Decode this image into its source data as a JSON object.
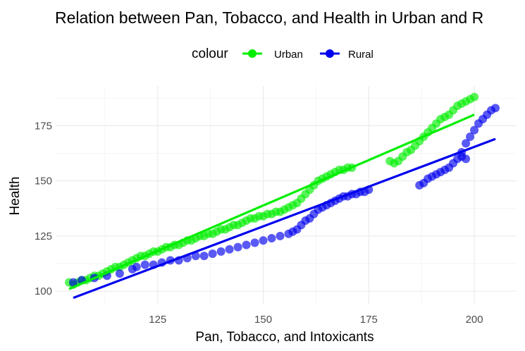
{
  "chart_data": {
    "type": "scatter",
    "title": "Relation between Pan, Tobacco, and Health in Urban and R",
    "xlabel": "Pan, Tobacco, and Intoxicants",
    "ylabel": "Health",
    "xlim": [
      101,
      210
    ],
    "ylim": [
      94,
      193
    ],
    "x_ticks": [
      125,
      150,
      175,
      200
    ],
    "y_ticks": [
      100,
      125,
      150,
      175
    ],
    "grid": true,
    "legend": {
      "title": "colour",
      "position": "top"
    },
    "series": [
      {
        "name": "Urban",
        "color": "#00ee00",
        "points": [
          [
            104,
            104
          ],
          [
            105,
            103
          ],
          [
            106,
            104
          ],
          [
            107,
            105
          ],
          [
            108,
            105
          ],
          [
            109,
            106
          ],
          [
            110,
            107
          ],
          [
            111,
            107
          ],
          [
            112,
            108
          ],
          [
            113,
            109
          ],
          [
            114,
            110
          ],
          [
            115,
            111
          ],
          [
            116,
            111
          ],
          [
            117,
            112
          ],
          [
            118,
            113
          ],
          [
            119,
            114
          ],
          [
            120,
            115
          ],
          [
            121,
            116
          ],
          [
            122,
            116
          ],
          [
            123,
            117
          ],
          [
            124,
            118
          ],
          [
            125,
            118
          ],
          [
            126,
            119
          ],
          [
            127,
            120
          ],
          [
            128,
            120
          ],
          [
            129,
            121
          ],
          [
            130,
            121
          ],
          [
            131,
            122
          ],
          [
            132,
            123
          ],
          [
            133,
            123
          ],
          [
            134,
            124
          ],
          [
            135,
            125
          ],
          [
            136,
            125
          ],
          [
            137,
            126
          ],
          [
            138,
            126
          ],
          [
            139,
            127
          ],
          [
            140,
            128
          ],
          [
            141,
            128
          ],
          [
            142,
            129
          ],
          [
            143,
            130
          ],
          [
            144,
            130
          ],
          [
            145,
            131
          ],
          [
            146,
            132
          ],
          [
            147,
            133
          ],
          [
            148,
            133
          ],
          [
            149,
            134
          ],
          [
            150,
            134
          ],
          [
            151,
            135
          ],
          [
            152,
            135
          ],
          [
            153,
            136
          ],
          [
            154,
            136
          ],
          [
            155,
            137
          ],
          [
            156,
            138
          ],
          [
            157,
            139
          ],
          [
            158,
            140
          ],
          [
            159,
            142
          ],
          [
            160,
            144
          ],
          [
            161,
            146
          ],
          [
            162,
            148
          ],
          [
            163,
            150
          ],
          [
            164,
            151
          ],
          [
            165,
            152
          ],
          [
            166,
            153
          ],
          [
            167,
            154
          ],
          [
            168,
            155
          ],
          [
            169,
            155
          ],
          [
            170,
            156
          ],
          [
            171,
            156
          ],
          [
            180,
            159
          ],
          [
            181,
            158
          ],
          [
            182,
            159
          ],
          [
            183,
            161
          ],
          [
            184,
            163
          ],
          [
            185,
            164
          ],
          [
            186,
            166
          ],
          [
            187,
            168
          ],
          [
            188,
            170
          ],
          [
            189,
            172
          ],
          [
            190,
            174
          ],
          [
            191,
            176
          ],
          [
            192,
            178
          ],
          [
            193,
            179
          ],
          [
            194,
            180
          ],
          [
            195,
            182
          ],
          [
            196,
            184
          ],
          [
            197,
            185
          ],
          [
            198,
            186
          ],
          [
            199,
            187
          ],
          [
            200,
            188
          ]
        ],
        "trend": [
          [
            104,
            101
          ],
          [
            200,
            180
          ]
        ]
      },
      {
        "name": "Rural",
        "color": "#0000ee",
        "points": [
          [
            105,
            104
          ],
          [
            107,
            105
          ],
          [
            110,
            106
          ],
          [
            113,
            107
          ],
          [
            116,
            108
          ],
          [
            119,
            110
          ],
          [
            120,
            111
          ],
          [
            122,
            112
          ],
          [
            124,
            112
          ],
          [
            126,
            113
          ],
          [
            128,
            114
          ],
          [
            130,
            114
          ],
          [
            132,
            115
          ],
          [
            134,
            116
          ],
          [
            136,
            116
          ],
          [
            138,
            117
          ],
          [
            140,
            118
          ],
          [
            142,
            119
          ],
          [
            144,
            120
          ],
          [
            146,
            121
          ],
          [
            148,
            122
          ],
          [
            150,
            123
          ],
          [
            152,
            124
          ],
          [
            154,
            125
          ],
          [
            156,
            126
          ],
          [
            157,
            127
          ],
          [
            158,
            128
          ],
          [
            159,
            130
          ],
          [
            160,
            132
          ],
          [
            161,
            133
          ],
          [
            162,
            135
          ],
          [
            163,
            137
          ],
          [
            164,
            138
          ],
          [
            165,
            139
          ],
          [
            166,
            140
          ],
          [
            167,
            141
          ],
          [
            168,
            142
          ],
          [
            169,
            143
          ],
          [
            170,
            143
          ],
          [
            171,
            144
          ],
          [
            172,
            144
          ],
          [
            173,
            145
          ],
          [
            174,
            145
          ],
          [
            175,
            146
          ],
          [
            187,
            148
          ],
          [
            188,
            149
          ],
          [
            189,
            151
          ],
          [
            190,
            152
          ],
          [
            191,
            153
          ],
          [
            192,
            154
          ],
          [
            193,
            155
          ],
          [
            194,
            156
          ],
          [
            195,
            158
          ],
          [
            196,
            160
          ],
          [
            197,
            163
          ],
          [
            198,
            167
          ],
          [
            199,
            170
          ],
          [
            200,
            173
          ],
          [
            201,
            176
          ],
          [
            202,
            178
          ],
          [
            203,
            180
          ],
          [
            204,
            182
          ],
          [
            205,
            183
          ],
          [
            197,
            161
          ],
          [
            198,
            160
          ]
        ],
        "trend": [
          [
            105,
            97
          ],
          [
            205,
            169
          ]
        ]
      }
    ]
  }
}
